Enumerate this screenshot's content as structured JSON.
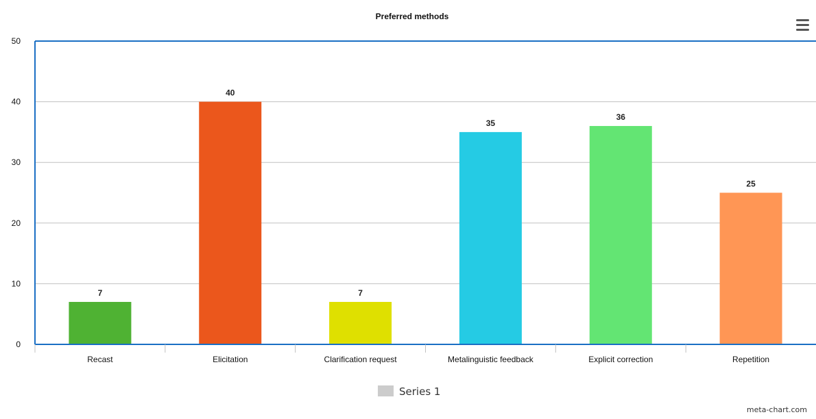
{
  "chart_data": {
    "type": "bar",
    "title": "Preferred methods",
    "xlabel": "",
    "ylabel": "",
    "categories": [
      "Recast",
      "Elicitation",
      "Clarification request",
      "Metalinguistic feedback",
      "Explicit correction",
      "Repetition"
    ],
    "series": [
      {
        "name": "Series 1",
        "values": [
          7,
          40,
          7,
          35,
          36,
          25
        ]
      }
    ],
    "bar_colors": [
      "#4fb233",
      "#eb571c",
      "#dfe000",
      "#25cbe4",
      "#63e573",
      "#ff9655"
    ],
    "ylim": [
      0,
      50
    ],
    "yticks": [
      0,
      10,
      20,
      30,
      40,
      50
    ],
    "grid": true,
    "data_labels": true,
    "legend": {
      "position": "bottom-center",
      "swatch_color": "#cccccc"
    }
  },
  "credit": "meta-chart.com",
  "menu_icon": "hamburger-menu-icon",
  "colors": {
    "axis": "#1a6fc4",
    "grid": "#c0c0c0"
  }
}
